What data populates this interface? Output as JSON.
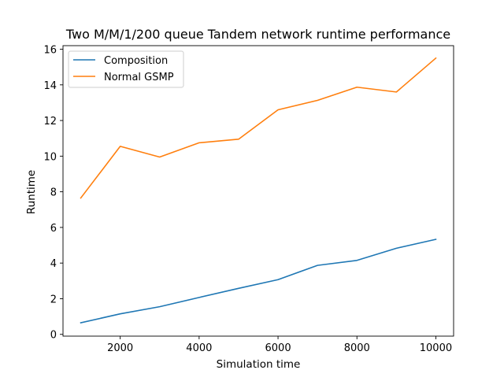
{
  "chart_data": {
    "type": "line",
    "title": "Two M/M/1/200 queue Tandem network runtime performance",
    "xlabel": "Simulation time",
    "ylabel": "Runtime",
    "xlim": [
      550,
      10450
    ],
    "ylim": [
      -0.1,
      16.2
    ],
    "xticks": [
      2000,
      4000,
      6000,
      8000,
      10000
    ],
    "yticks": [
      0,
      2,
      4,
      6,
      8,
      10,
      12,
      14,
      16
    ],
    "grid": false,
    "legend_position": "upper-left",
    "x": [
      1000,
      2000,
      3000,
      4000,
      5000,
      6000,
      7000,
      8000,
      9000,
      10000
    ],
    "series": [
      {
        "name": "Composition",
        "color": "#1f77b4",
        "values": [
          0.65,
          1.15,
          1.55,
          2.07,
          2.58,
          3.07,
          3.87,
          4.15,
          4.83,
          5.33
        ]
      },
      {
        "name": "Normal GSMP",
        "color": "#ff7f0e",
        "values": [
          7.65,
          10.55,
          9.95,
          10.75,
          10.95,
          12.6,
          13.13,
          13.87,
          13.6,
          15.5
        ]
      }
    ]
  }
}
